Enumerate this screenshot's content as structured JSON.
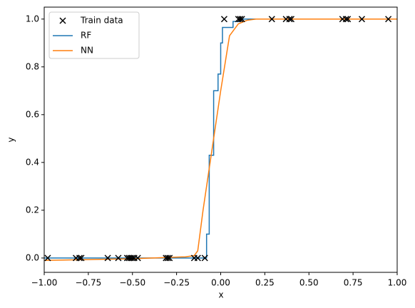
{
  "chart_data": {
    "type": "line",
    "xlabel": "x",
    "ylabel": "y",
    "xlim": [
      -1,
      1
    ],
    "ylim": [
      -0.06,
      1.05
    ],
    "xticks": [
      {
        "value": -1,
        "label": "−1.00"
      },
      {
        "value": -0.75,
        "label": "−0.75"
      },
      {
        "value": -0.5,
        "label": "−0.50"
      },
      {
        "value": -0.25,
        "label": "−0.25"
      },
      {
        "value": 0,
        "label": "0.00"
      },
      {
        "value": 0.25,
        "label": "0.25"
      },
      {
        "value": 0.5,
        "label": "0.50"
      },
      {
        "value": 0.75,
        "label": "0.75"
      },
      {
        "value": 1,
        "label": "1.00"
      }
    ],
    "yticks": [
      {
        "value": 0,
        "label": "0.0"
      },
      0.2,
      0.4,
      0.6,
      0.8,
      {
        "value": 1,
        "label": "1.0"
      }
    ],
    "legend": "upper-left",
    "series": [
      {
        "name": "Train data",
        "color": "#000000",
        "marker": "x",
        "x": [
          -0.98,
          -0.82,
          -0.8,
          -0.79,
          -0.64,
          -0.58,
          -0.53,
          -0.52,
          -0.51,
          -0.5,
          -0.49,
          -0.47,
          -0.31,
          -0.3,
          -0.29,
          -0.15,
          -0.13,
          -0.09,
          0.02,
          0.1,
          0.11,
          0.12,
          0.29,
          0.37,
          0.39,
          0.4,
          0.69,
          0.71,
          0.72,
          0.8,
          0.95
        ],
        "values": [
          0,
          0,
          0,
          0,
          0,
          0,
          0,
          0,
          0,
          0,
          0,
          0,
          0,
          0,
          0,
          0,
          0,
          0,
          1,
          1,
          1,
          1,
          1,
          1,
          1,
          1,
          1,
          1,
          1,
          1,
          1
        ]
      },
      {
        "name": "RF",
        "color": "#1f77b4",
        "x": [
          -1,
          -0.08,
          -0.08,
          -0.065,
          -0.065,
          -0.04,
          -0.04,
          -0.015,
          -0.015,
          0,
          0,
          0.01,
          0.01,
          0.07,
          0.07,
          0.11,
          0.11,
          1
        ],
        "values": [
          0,
          0,
          0.1,
          0.1,
          0.43,
          0.43,
          0.7,
          0.7,
          0.77,
          0.77,
          0.9,
          0.9,
          0.965,
          0.965,
          0.99,
          0.99,
          1,
          1
        ]
      },
      {
        "name": "NN",
        "color": "#ff7f0e",
        "x": [
          -1,
          -0.5,
          -0.2,
          -0.15,
          -0.13,
          -0.1,
          -0.05,
          0,
          0.05,
          0.1,
          0.15,
          0.2,
          0.5,
          1
        ],
        "values": [
          -0.01,
          -0.003,
          0.005,
          0.01,
          0.03,
          0.2,
          0.45,
          0.7,
          0.93,
          0.98,
          0.995,
          1,
          1,
          1
        ]
      }
    ]
  }
}
